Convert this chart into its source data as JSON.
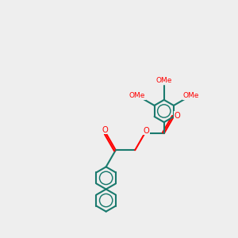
{
  "bg_color": "#eeeeee",
  "bond_color": "#1a7a6e",
  "oxygen_color": "#ff0000",
  "bond_width": 1.5,
  "figsize": [
    3.0,
    3.0
  ],
  "dpi": 100,
  "xlim": [
    0,
    10
  ],
  "ylim": [
    0,
    10
  ]
}
